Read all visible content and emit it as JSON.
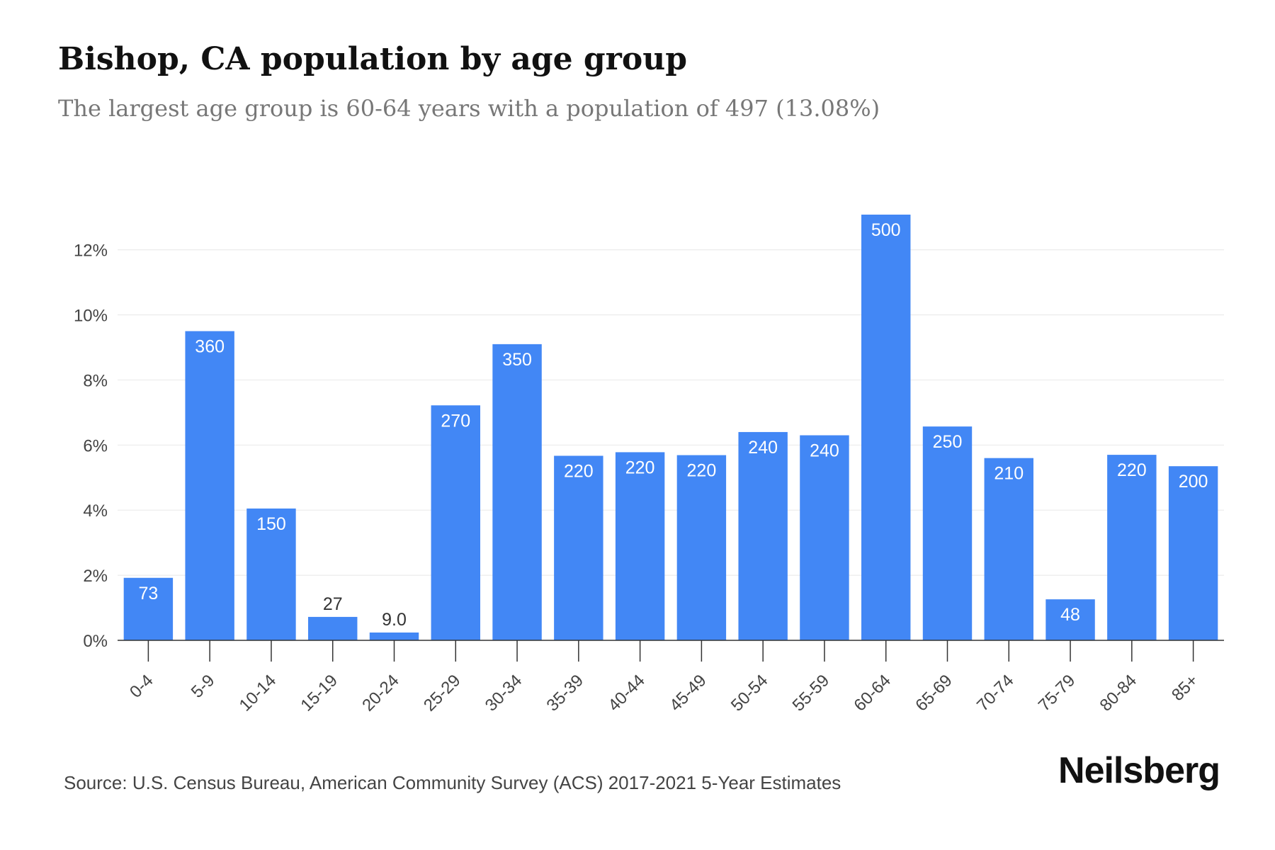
{
  "header": {
    "title": "Bishop, CA population by age group",
    "subtitle": "The largest age group is 60-64 years with a population of 497 (13.08%)"
  },
  "footer": {
    "source": "Source: U.S. Census Bureau, American Community Survey (ACS) 2017-2021 5-Year Estimates",
    "brand": "Neilsberg"
  },
  "colors": {
    "bar": "#4287f5",
    "grid": "#ececec",
    "axis": "#333333",
    "tick_text": "#444444",
    "label_inside": "#ffffff",
    "label_outside": "#333333"
  },
  "chart_data": {
    "type": "bar",
    "categories": [
      "0-4",
      "5-9",
      "10-14",
      "15-19",
      "20-24",
      "25-29",
      "30-34",
      "35-39",
      "40-44",
      "45-49",
      "50-54",
      "55-59",
      "60-64",
      "65-69",
      "70-74",
      "75-79",
      "80-84",
      "85+"
    ],
    "values": [
      1.92,
      9.5,
      4.05,
      0.72,
      0.24,
      7.22,
      9.1,
      5.67,
      5.78,
      5.69,
      6.4,
      6.3,
      13.08,
      6.57,
      5.6,
      1.26,
      5.7,
      5.35
    ],
    "data_labels": [
      "73",
      "360",
      "150",
      "27",
      "9.0",
      "270",
      "350",
      "220",
      "220",
      "220",
      "240",
      "240",
      "500",
      "250",
      "210",
      "48",
      "220",
      "200"
    ],
    "y_ticks": [
      0,
      2,
      4,
      6,
      8,
      10,
      12
    ],
    "y_tick_labels": [
      "0%",
      "2%",
      "4%",
      "6%",
      "8%",
      "10%",
      "12%"
    ],
    "ylim": [
      0,
      13.08
    ],
    "grid": true,
    "legend": "none"
  }
}
